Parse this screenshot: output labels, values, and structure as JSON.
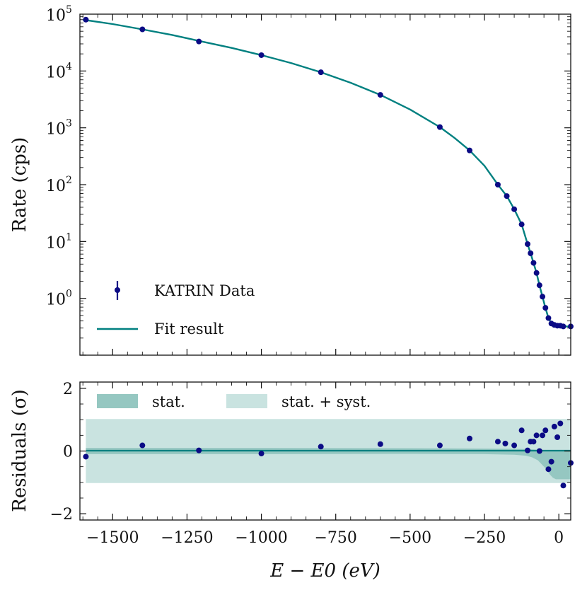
{
  "chart_data": [
    {
      "type": "scatter",
      "panel": "top",
      "yscale": "log",
      "ylabel": "Rate (cps)",
      "xlim": [
        -1610,
        40
      ],
      "ylim_log10": [
        -1,
        5
      ],
      "ytick_exponents": [
        {
          "base": "10",
          "exp": "0",
          "value": 0
        },
        {
          "base": "10",
          "exp": "1",
          "value": 1
        },
        {
          "base": "10",
          "exp": "2",
          "value": 2
        },
        {
          "base": "10",
          "exp": "3",
          "value": 3
        },
        {
          "base": "10",
          "exp": "4",
          "value": 4
        },
        {
          "base": "10",
          "exp": "5",
          "value": 5
        }
      ],
      "series": [
        {
          "name": "KATRIN Data",
          "kind": "points",
          "color": "#0b0b85",
          "x": [
            -1590,
            -1400,
            -1210,
            -1000,
            -800,
            -600,
            -400,
            -300,
            -205,
            -175,
            -150,
            -125,
            -105,
            -95,
            -85,
            -75,
            -65,
            -55,
            -45,
            -35,
            -25,
            -15,
            -5,
            5,
            15,
            40
          ],
          "y": [
            80000,
            54000,
            33000,
            19000,
            9500,
            3800,
            1030,
            400,
            100,
            63,
            37,
            20,
            9,
            6.2,
            4.2,
            2.8,
            1.7,
            1.07,
            0.68,
            0.45,
            0.36,
            0.34,
            0.33,
            0.33,
            0.32,
            0.32
          ]
        },
        {
          "name": "Fit result",
          "kind": "line",
          "color": "#008080",
          "x": [
            -1600,
            -1500,
            -1400,
            -1300,
            -1200,
            -1100,
            -1000,
            -900,
            -800,
            -700,
            -600,
            -500,
            -400,
            -350,
            -300,
            -250,
            -205,
            -175,
            -150,
            -125,
            -105,
            -95,
            -85,
            -75,
            -65,
            -55,
            -45,
            -35,
            -25,
            -15,
            -5,
            5,
            15,
            40
          ],
          "y": [
            80000,
            67000,
            54000,
            43000,
            33000,
            25500,
            19000,
            13800,
            9500,
            6200,
            3800,
            2100,
            1030,
            660,
            400,
            215,
            100,
            63,
            37,
            20,
            9,
            6.2,
            4.2,
            2.8,
            1.7,
            1.07,
            0.68,
            0.45,
            0.36,
            0.34,
            0.33,
            0.33,
            0.32,
            0.32
          ]
        }
      ],
      "legend": {
        "position": "lower-left",
        "entries": [
          {
            "label": "KATRIN Data",
            "kind": "errorbar-point"
          },
          {
            "label": "Fit result",
            "kind": "line"
          }
        ]
      }
    },
    {
      "type": "scatter",
      "panel": "bottom",
      "ylabel": "Residuals (σ)",
      "xlabel": "E − E0 (eV)",
      "xlim": [
        -1610,
        40
      ],
      "ylim": [
        -2.2,
        2.2
      ],
      "xticks": [
        {
          "value": -1500,
          "label": "−1500"
        },
        {
          "value": -1250,
          "label": "−1250"
        },
        {
          "value": -1000,
          "label": "−1000"
        },
        {
          "value": -750,
          "label": "−750"
        },
        {
          "value": -500,
          "label": "−500"
        },
        {
          "value": -250,
          "label": "−250"
        },
        {
          "value": 0,
          "label": "0"
        }
      ],
      "yticks": [
        {
          "value": -2,
          "label": "−2"
        },
        {
          "value": 0,
          "label": "0"
        },
        {
          "value": 2,
          "label": "2"
        }
      ],
      "bands": [
        {
          "name": "stat. + syst.",
          "color": "#c9e3e0",
          "x": [
            -1590,
            40
          ],
          "upper": [
            1.02,
            1.02
          ],
          "lower": [
            -1.02,
            -1.02
          ]
        },
        {
          "name": "stat.",
          "color": "#95c7c1",
          "x": [
            -1590,
            -1000,
            -500,
            -250,
            -150,
            -110,
            -90,
            -70,
            -55,
            -40,
            -30,
            -20,
            -10,
            0,
            10,
            20,
            30,
            40
          ],
          "upper": [
            0.1,
            0.1,
            0.09,
            0.08,
            0.07,
            0.06,
            0.05,
            0.04,
            0.03,
            0.03,
            0.03,
            0.03,
            0.03,
            0.03,
            0.03,
            0.03,
            0.03,
            0.03
          ],
          "lower": [
            -0.1,
            -0.1,
            -0.09,
            -0.1,
            -0.12,
            -0.15,
            -0.2,
            -0.3,
            -0.45,
            -0.6,
            -0.75,
            -0.85,
            -0.9,
            -0.9,
            -0.9,
            -0.9,
            -0.9,
            -0.9
          ]
        }
      ],
      "zero_line_color": "#008080",
      "points": {
        "color": "#0b0b85",
        "x": [
          -1590,
          -1400,
          -1210,
          -1000,
          -800,
          -600,
          -400,
          -300,
          -205,
          -180,
          -150,
          -125,
          -105,
          -95,
          -85,
          -75,
          -65,
          -55,
          -45,
          -35,
          -25,
          -15,
          -5,
          5,
          15,
          40
        ],
        "y": [
          -0.18,
          0.18,
          0.02,
          -0.08,
          0.14,
          0.22,
          0.18,
          0.4,
          0.3,
          0.24,
          0.18,
          0.66,
          0.02,
          0.3,
          0.3,
          0.5,
          0.0,
          0.5,
          0.66,
          -0.58,
          -0.34,
          0.78,
          0.44,
          0.88,
          -1.1,
          -0.38
        ]
      },
      "legend": {
        "position": "top",
        "entries": [
          {
            "label": "stat.",
            "color": "#95c7c1"
          },
          {
            "label": "stat. + syst.",
            "color": "#c9e3e0"
          }
        ]
      }
    }
  ]
}
